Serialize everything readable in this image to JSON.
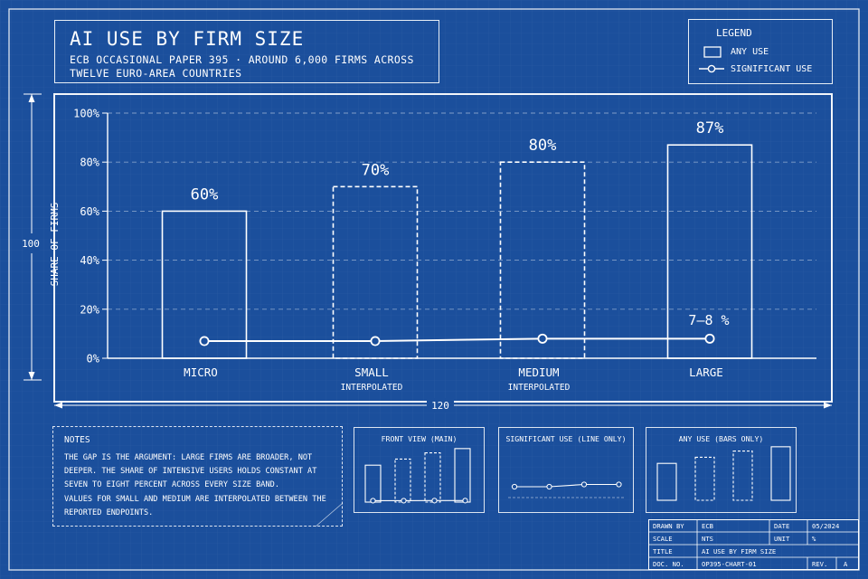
{
  "header": {
    "title": "AI USE BY FIRM SIZE",
    "subtitle": "ECB OCCASIONAL PAPER 395 · AROUND 6,000 FIRMS ACROSS TWELVE EURO-AREA COUNTRIES"
  },
  "legend": {
    "title": "LEGEND",
    "any_use": "ANY USE",
    "significant_use": "SIGNIFICANT USE"
  },
  "dimensions": {
    "vertical": "100",
    "horizontal": "120"
  },
  "chart_data": {
    "type": "bar",
    "title": "AI USE BY FIRM SIZE",
    "ylabel": "SHARE OF FIRMS",
    "ylim": [
      0,
      100
    ],
    "yticks": [
      "0%",
      "20%",
      "40%",
      "60%",
      "80%",
      "100%"
    ],
    "yticks_values": [
      0,
      20,
      40,
      60,
      80,
      100
    ],
    "grid": true,
    "legend_position": "top-right",
    "categories": [
      "MICRO",
      "SMALL",
      "MEDIUM",
      "LARGE"
    ],
    "category_notes": [
      "",
      "INTERPOLATED",
      "INTERPOLATED",
      ""
    ],
    "interpolated": [
      false,
      true,
      true,
      false
    ],
    "series": [
      {
        "name": "ANY USE",
        "type": "bar",
        "values": [
          60,
          70,
          80,
          87
        ],
        "labels": [
          "60%",
          "70%",
          "80%",
          "87%"
        ]
      },
      {
        "name": "SIGNIFICANT USE",
        "type": "line",
        "values": [
          7,
          7,
          8,
          8
        ]
      }
    ],
    "annotation": "7–8 %"
  },
  "notes": {
    "title": "NOTES",
    "paragraphs": [
      "THE GAP IS THE ARGUMENT: LARGE FIRMS ARE BROADER, NOT DEEPER. THE SHARE OF INTENSIVE USERS HOLDS CONSTANT AT SEVEN TO EIGHT PERCENT ACROSS EVERY SIZE BAND.",
      "VALUES FOR SMALL AND MEDIUM ARE INTERPOLATED BETWEEN THE REPORTED ENDPOINTS."
    ]
  },
  "mini_views": {
    "front": "FRONT VIEW (MAIN)",
    "line_only": "SIGNIFICANT USE (LINE ONLY)",
    "bars_only": "ANY USE (BARS ONLY)"
  },
  "title_block": {
    "drawn_by_label": "DRAWN BY",
    "drawn_by": "ECB",
    "date_label": "DATE",
    "date": "05/2024",
    "scale_label": "SCALE",
    "scale": "NTS",
    "unit_label": "UNIT",
    "unit": "%",
    "title_label": "TITLE",
    "title": "AI USE BY FIRM SIZE",
    "doc_label": "DOC. NO.",
    "doc": "OP395-CHART-01",
    "rev_label": "REV.",
    "rev": "A"
  },
  "colors": {
    "background": "#1b4f9c",
    "line": "#ffffff",
    "grid": "#8fb0e0"
  }
}
